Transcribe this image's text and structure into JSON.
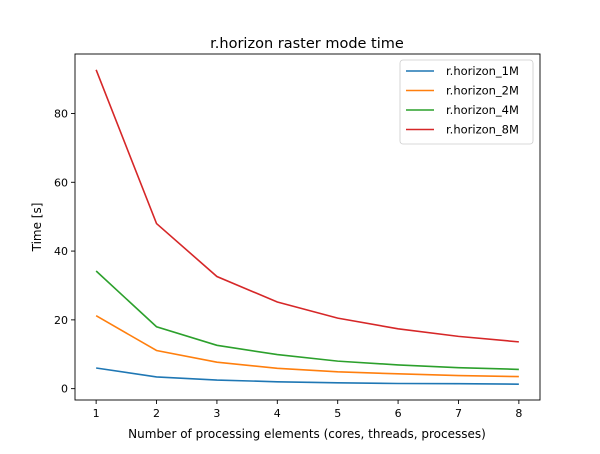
{
  "chart_data": {
    "type": "line",
    "title": "r.horizon raster mode time",
    "xlabel": "Number of processing elements (cores, threads, processes)",
    "ylabel": "Time [s]",
    "x": [
      1,
      2,
      3,
      4,
      5,
      6,
      7,
      8
    ],
    "xticks": [
      1,
      2,
      3,
      4,
      5,
      6,
      7,
      8
    ],
    "yticks": [
      0,
      20,
      40,
      60,
      80
    ],
    "xlim": [
      0.65,
      8.35
    ],
    "ylim": [
      -3.3,
      97.3
    ],
    "grid": false,
    "legend_position": "top-right",
    "series": [
      {
        "name": "r.horizon_1M",
        "color": "#1f77b4",
        "values": [
          6.0,
          3.4,
          2.5,
          2.0,
          1.7,
          1.5,
          1.45,
          1.3
        ]
      },
      {
        "name": "r.horizon_2M",
        "color": "#ff7f0e",
        "values": [
          21.2,
          11.1,
          7.7,
          5.9,
          4.9,
          4.3,
          3.8,
          3.5
        ]
      },
      {
        "name": "r.horizon_4M",
        "color": "#2ca02c",
        "values": [
          34.2,
          18.0,
          12.6,
          9.9,
          8.0,
          6.9,
          6.1,
          5.6
        ]
      },
      {
        "name": "r.horizon_8M",
        "color": "#d62728",
        "values": [
          92.7,
          48.0,
          32.6,
          25.2,
          20.5,
          17.4,
          15.2,
          13.6
        ]
      }
    ]
  }
}
